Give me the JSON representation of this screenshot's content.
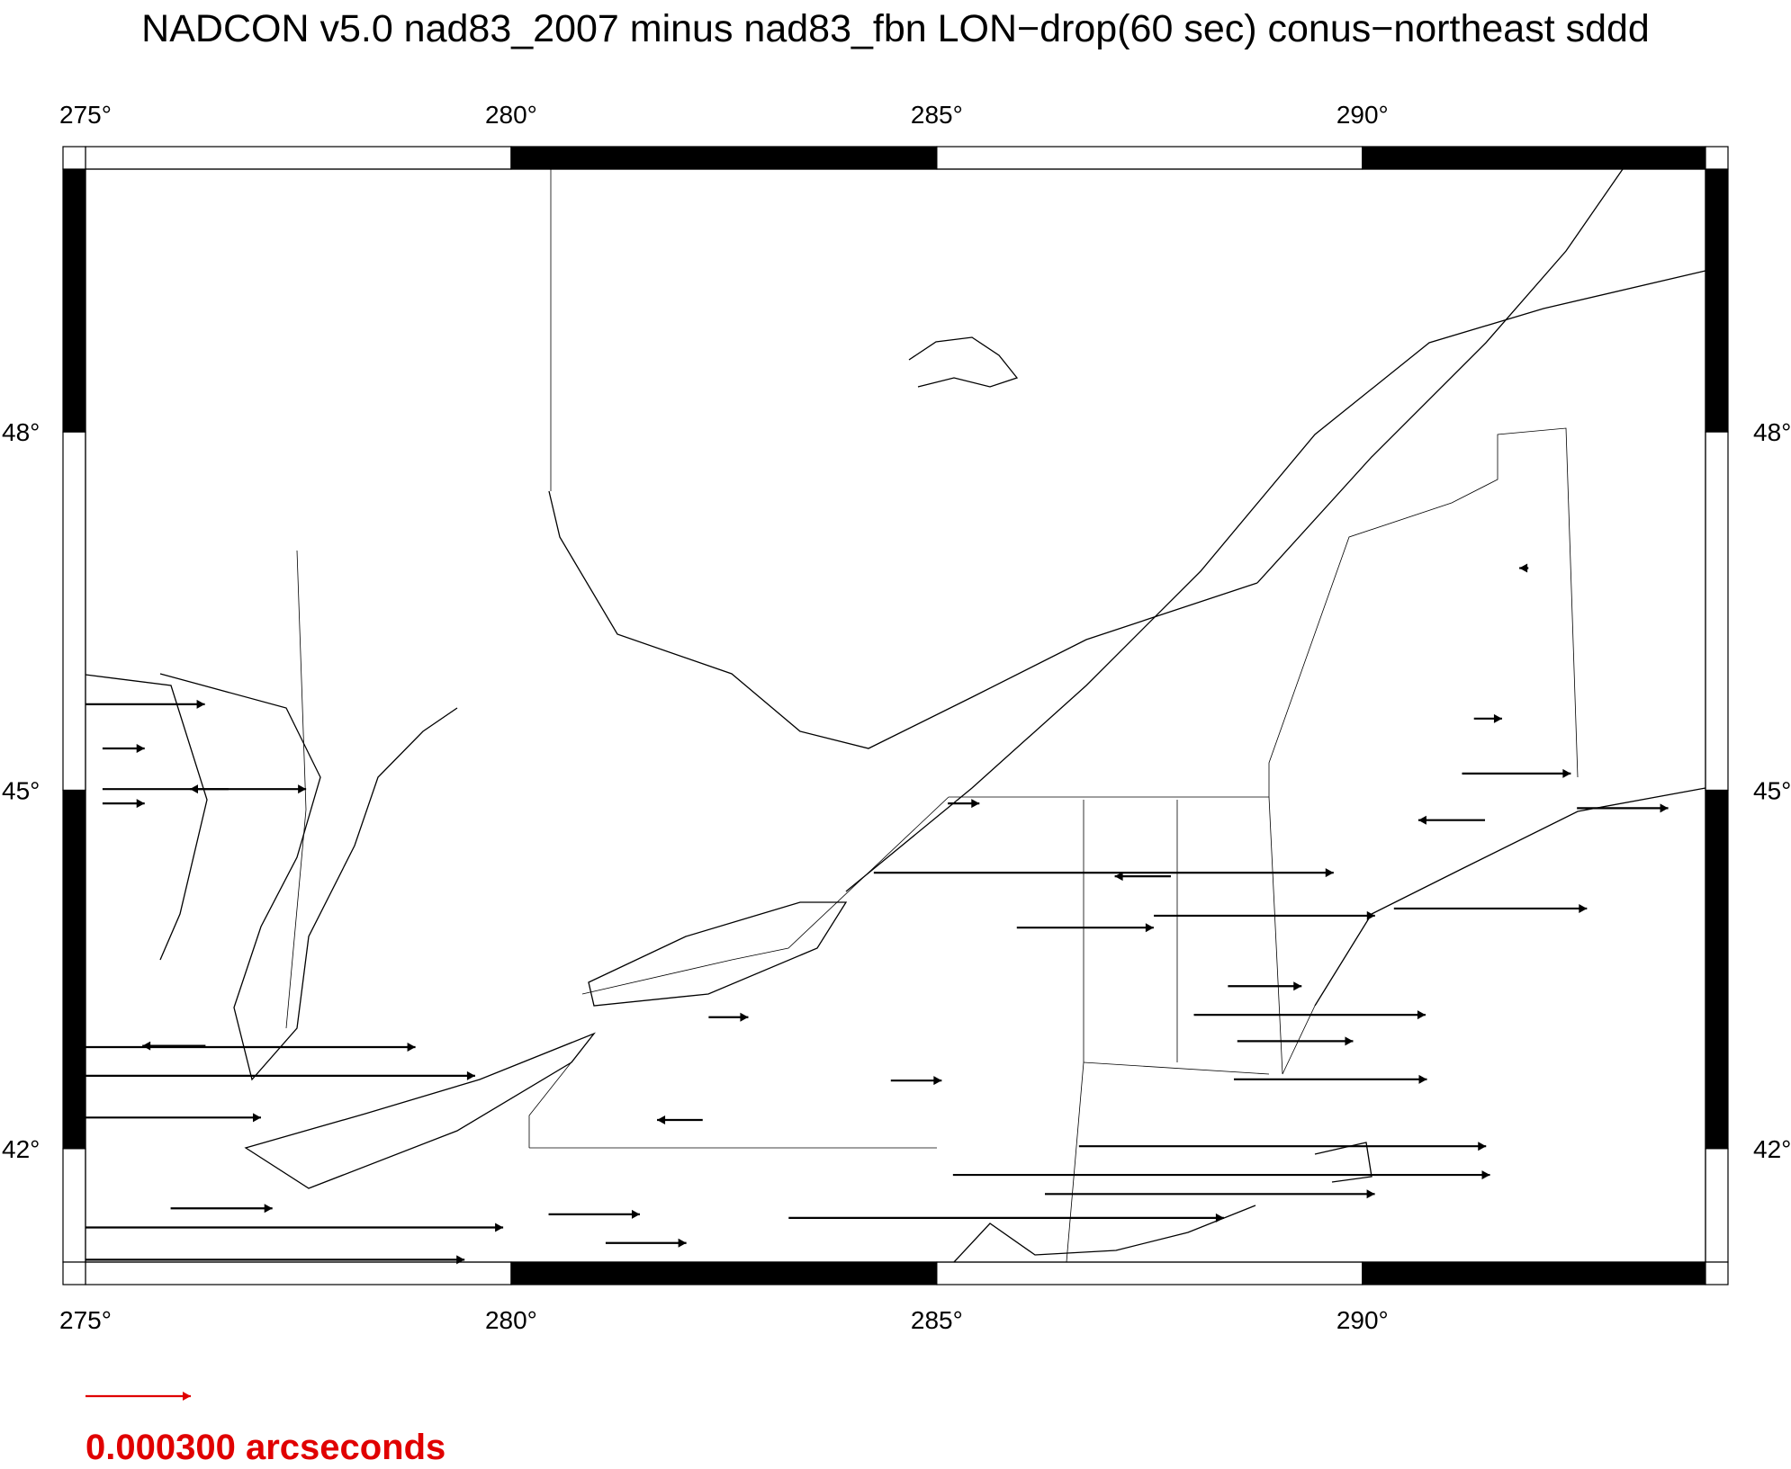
{
  "chart_data": {
    "type": "vector",
    "title": "NADCON v5.0 nad83_2007 minus nad83_fbn LON−drop(60 sec) conus−northeast sddd",
    "xlim": [
      275,
      294.03
    ],
    "ylim": [
      41.05,
      50.2
    ],
    "xticks": [
      {
        "value": 275,
        "label": "275°"
      },
      {
        "value": 280,
        "label": "280°"
      },
      {
        "value": 285,
        "label": "285°"
      },
      {
        "value": 290,
        "label": "290°"
      }
    ],
    "yticks": [
      {
        "value": 42,
        "label": "42°"
      },
      {
        "value": 45,
        "label": "45°"
      },
      {
        "value": 48,
        "label": "48°"
      }
    ],
    "color": "#000000",
    "legend": {
      "value": 0.0003,
      "label": "0.000300 arcseconds",
      "color": "#e00000"
    },
    "vectors": [
      {
        "lon": 275.0,
        "lat": 45.72,
        "value": 0.00034
      },
      {
        "lon": 275.2,
        "lat": 45.01,
        "value": 0.00058
      },
      {
        "lon": 275.2,
        "lat": 45.35,
        "value": 0.00012
      },
      {
        "lon": 275.2,
        "lat": 44.89,
        "value": 0.00012
      },
      {
        "lon": 284.26,
        "lat": 44.31,
        "value": 0.00131
      },
      {
        "lon": 287.55,
        "lat": 43.95,
        "value": 0.00063
      },
      {
        "lon": 290.37,
        "lat": 44.01,
        "value": 0.00055
      },
      {
        "lon": 292.52,
        "lat": 44.85,
        "value": 0.00026
      },
      {
        "lon": 291.17,
        "lat": 45.14,
        "value": 0.00031
      },
      {
        "lon": 288.02,
        "lat": 43.12,
        "value": 0.00066
      },
      {
        "lon": 288.49,
        "lat": 42.58,
        "value": 0.00055
      },
      {
        "lon": 286.67,
        "lat": 42.02,
        "value": 0.00116
      },
      {
        "lon": 285.19,
        "lat": 41.78,
        "value": 0.00153
      },
      {
        "lon": 286.27,
        "lat": 41.62,
        "value": 0.00094
      },
      {
        "lon": 283.26,
        "lat": 41.42,
        "value": 0.00124
      },
      {
        "lon": 280.44,
        "lat": 41.45,
        "value": 0.00026
      },
      {
        "lon": 281.11,
        "lat": 41.21,
        "value": 0.00023
      },
      {
        "lon": 275.0,
        "lat": 42.85,
        "value": 0.00094
      },
      {
        "lon": 275.0,
        "lat": 42.61,
        "value": 0.00111
      },
      {
        "lon": 275.0,
        "lat": 42.26,
        "value": 0.0005
      },
      {
        "lon": 275.0,
        "lat": 41.34,
        "value": 0.00119
      },
      {
        "lon": 275.0,
        "lat": 41.07,
        "value": 0.00108
      },
      {
        "lon": 284.46,
        "lat": 42.57,
        "value": 0.000145
      },
      {
        "lon": 282.32,
        "lat": 43.1,
        "value": 0.000113
      },
      {
        "lon": 285.94,
        "lat": 43.85,
        "value": 0.00039
      },
      {
        "lon": 288.42,
        "lat": 43.36,
        "value": 0.00021
      },
      {
        "lon": 288.53,
        "lat": 42.9,
        "value": 0.00033
      },
      {
        "lon": 291.31,
        "lat": 45.6,
        "value": 8e-05
      },
      {
        "lon": 276.0,
        "lat": 41.5,
        "value": 0.00029
      },
      {
        "lon": 285.13,
        "lat": 44.89,
        "value": 9e-05
      },
      {
        "lon": 276.41,
        "lat": 42.86,
        "value": -0.00018
      },
      {
        "lon": 282.25,
        "lat": 42.24,
        "value": -0.00013
      },
      {
        "lon": 276.68,
        "lat": 45.01,
        "value": -0.00011
      },
      {
        "lon": 291.95,
        "lat": 46.86,
        "value": -2.6e-05
      },
      {
        "lon": 291.44,
        "lat": 44.75,
        "value": -0.00019
      },
      {
        "lon": 287.75,
        "lat": 44.28,
        "value": -0.00016
      }
    ]
  }
}
